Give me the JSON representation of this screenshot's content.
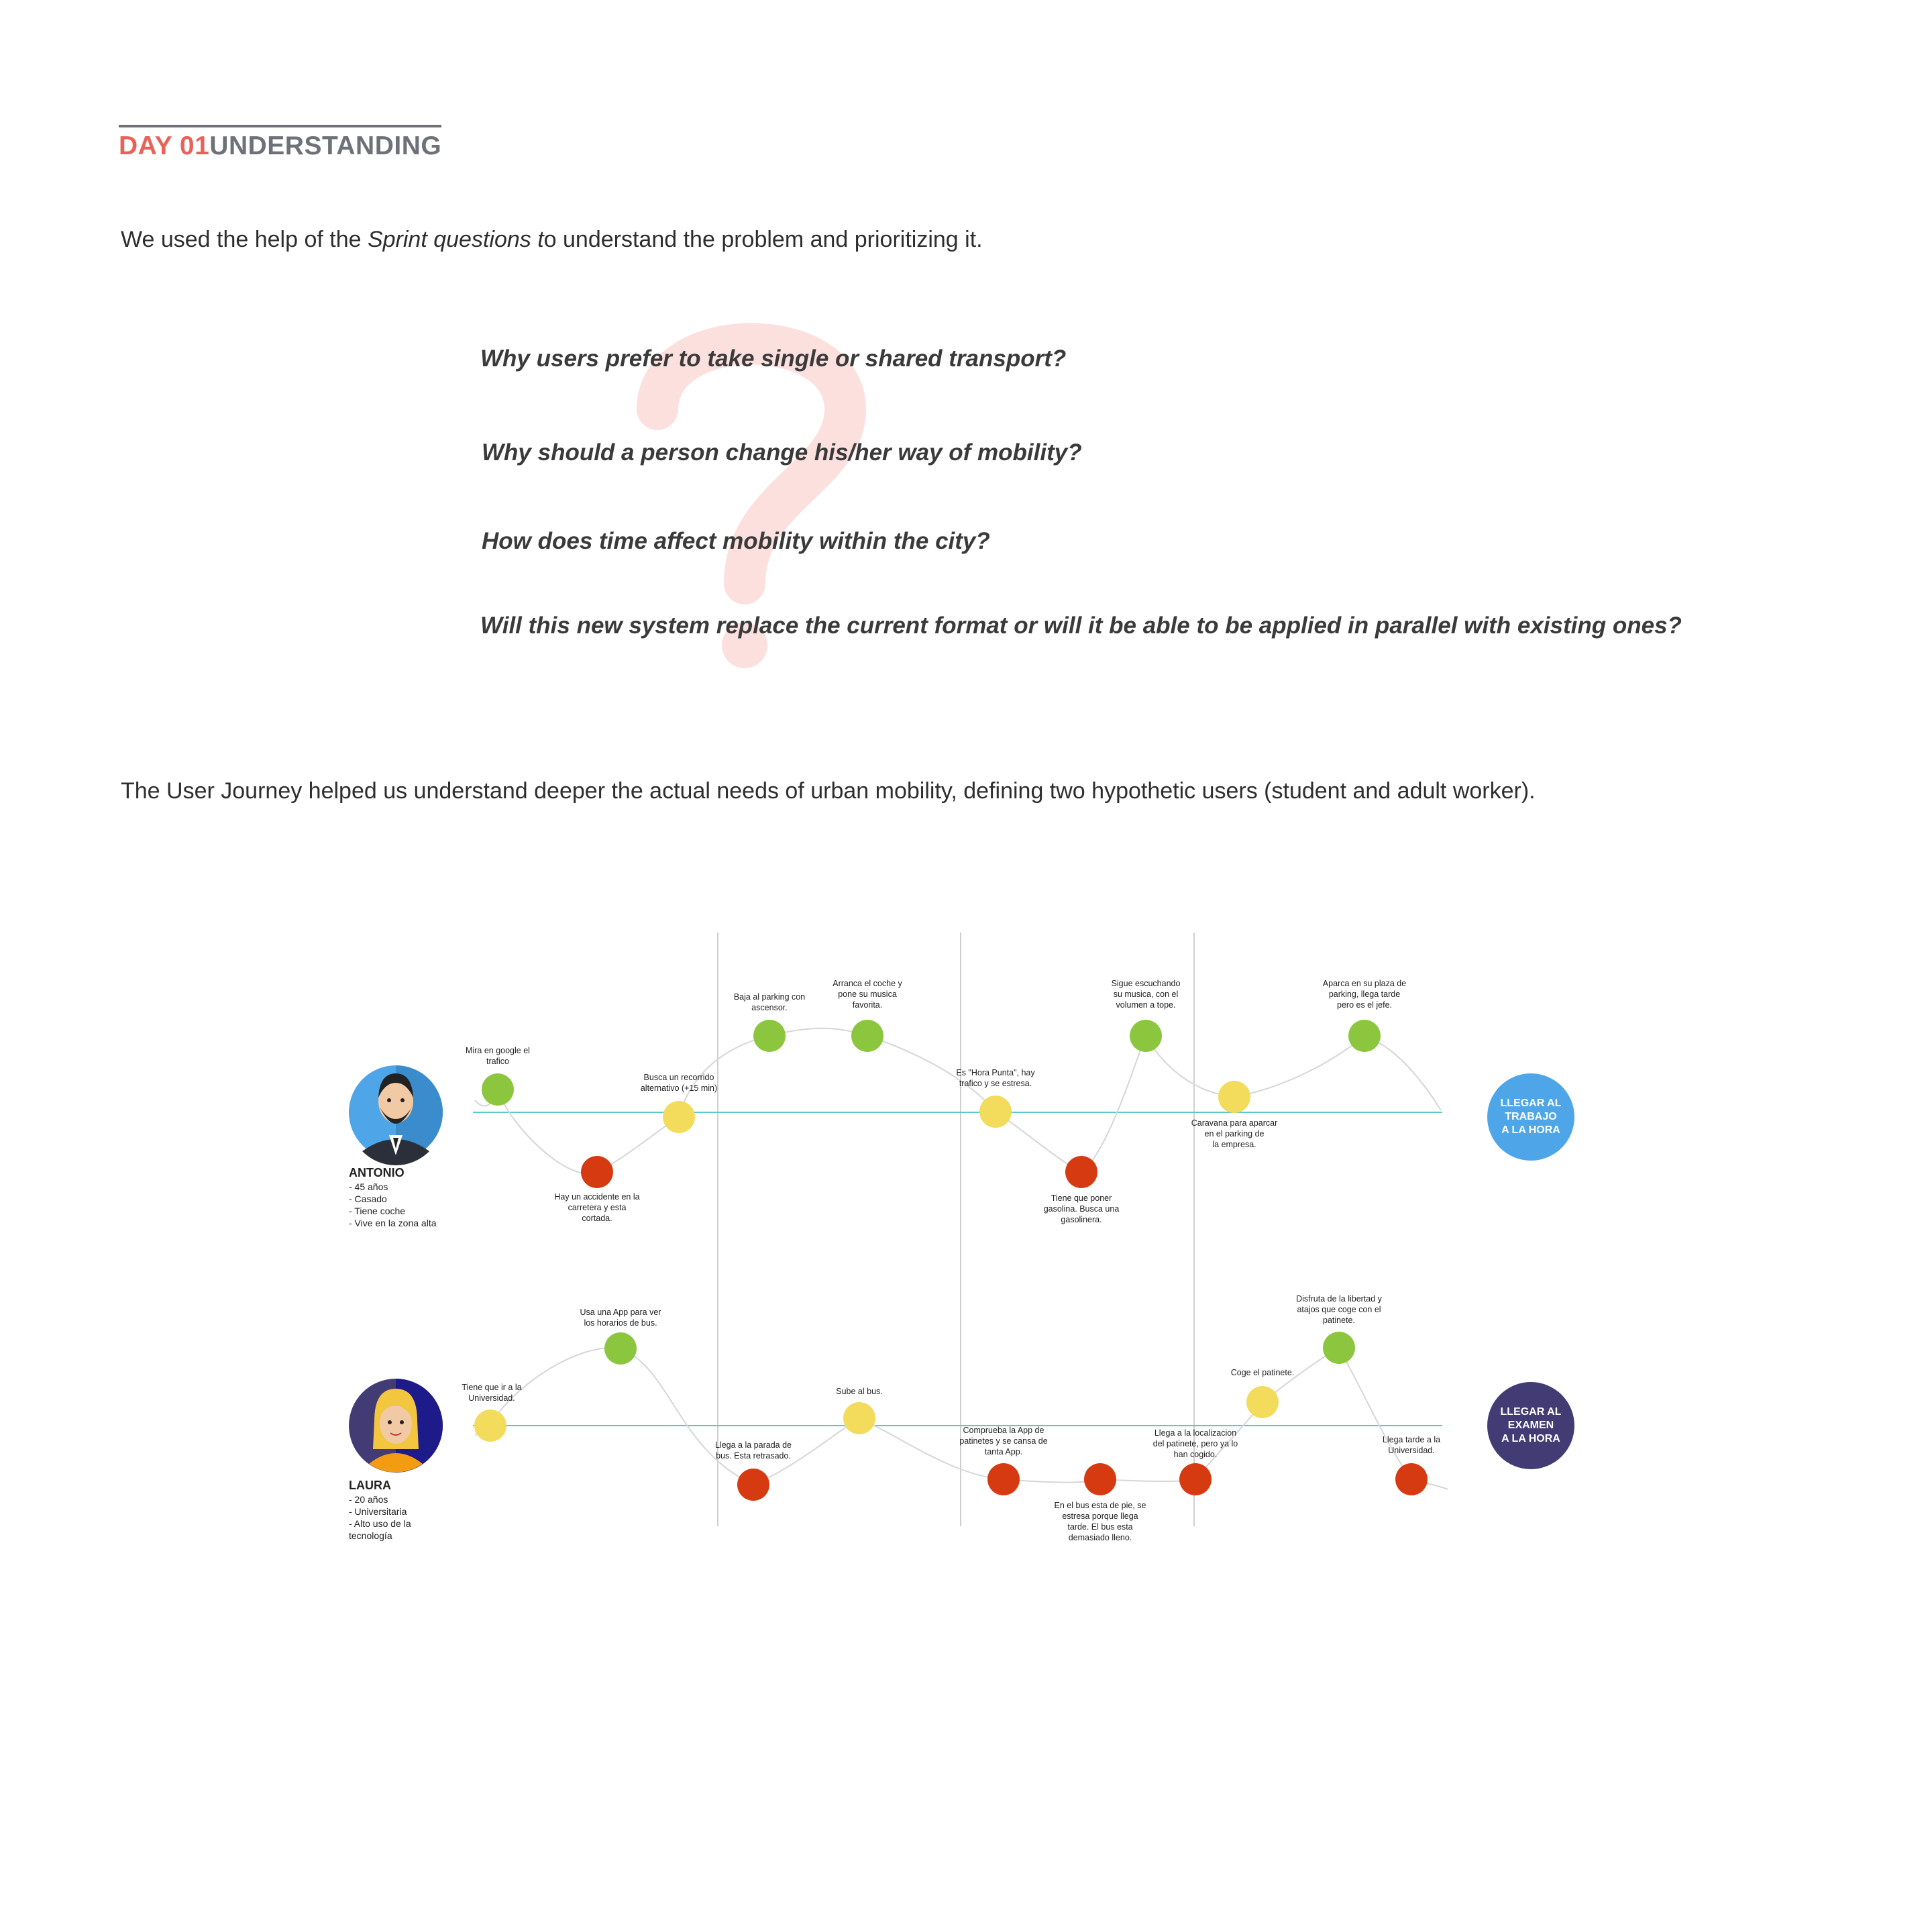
{
  "heading": {
    "day": "DAY 01",
    "title": "UNDERSTANDING"
  },
  "intro": {
    "before": "We used the help of the ",
    "emph": "Sprint questions t",
    "after": "o understand the problem and prioritizing it."
  },
  "questions": [
    "Why users prefer to take single or shared transport?",
    "Why should a person change his/her way of mobility?",
    "How does time affect mobility within the city?",
    "Will this new system replace the current format or will it be able to be applied in parallel with existing ones?"
  ],
  "journey_intro": "The User Journey helped us understand deeper the actual needs of urban mobility, defining two hypothetic users (student and adult worker).",
  "colors": {
    "accent": "#e8625a",
    "heading_grey": "#6e7178",
    "positive": "#8cc63f",
    "neutral": "#f3dc5b",
    "negative": "#d63a10",
    "baseline": "#5ec8c8",
    "goal_antonio": "#4ea6e8",
    "goal_laura": "#433b73"
  },
  "journey": {
    "personas": [
      {
        "name": "ANTONIO",
        "details": [
          "- 45 años",
          "- Casado",
          "- Tiene coche",
          "- Vive en la zona alta"
        ],
        "goal": [
          "LLEGAR AL",
          "TRABAJO",
          "A LA HORA"
        ],
        "steps": [
          {
            "mood": "positive",
            "lines": [
              "Mira en google el",
              "trafico"
            ]
          },
          {
            "mood": "negative",
            "lines": [
              "Hay un accidente en la",
              "carretera y esta",
              "cortada."
            ]
          },
          {
            "mood": "neutral",
            "lines": [
              "Busca un recorrido",
              "alternativo (+15 min)"
            ]
          },
          {
            "mood": "positive",
            "lines": [
              "Baja al parking con",
              "ascensor."
            ]
          },
          {
            "mood": "positive",
            "lines": [
              "Arranca el coche y",
              "pone su musica",
              "favorita."
            ]
          },
          {
            "mood": "neutral",
            "lines": [
              "Es \"Hora Punta\", hay",
              "trafico y se estresa."
            ]
          },
          {
            "mood": "negative",
            "lines": [
              "Tiene que poner",
              "gasolina. Busca una",
              "gasolinera."
            ]
          },
          {
            "mood": "positive",
            "lines": [
              "Sigue escuchando",
              "su musica, con el",
              "volumen a tope."
            ]
          },
          {
            "mood": "neutral",
            "lines": [
              "Caravana para aparcar",
              "en el parking de",
              "la empresa."
            ]
          },
          {
            "mood": "positive",
            "lines": [
              "Aparca en su plaza de",
              "parking, llega tarde",
              "pero es el jefe."
            ]
          }
        ]
      },
      {
        "name": "LAURA",
        "details": [
          "- 20 años",
          "- Universitaria",
          "- Alto uso de la",
          "tecnología"
        ],
        "goal": [
          "LLEGAR AL",
          "EXAMEN",
          "A LA HORA"
        ],
        "steps": [
          {
            "mood": "neutral",
            "lines": [
              "Tiene que ir a la",
              "Universidad."
            ]
          },
          {
            "mood": "positive",
            "lines": [
              "Usa una App para ver",
              "los horarios de bus."
            ]
          },
          {
            "mood": "negative",
            "lines": [
              "Llega a la parada de",
              "bus. Esta retrasado."
            ]
          },
          {
            "mood": "neutral",
            "lines": [
              "Sube al bus."
            ]
          },
          {
            "mood": "negative",
            "lines": [
              "Comprueba la App de",
              "patinetes y se cansa de",
              "tanta App."
            ]
          },
          {
            "mood": "negative",
            "lines": [
              "En el bus esta de pie, se",
              "estresa porque llega",
              "tarde. El bus esta",
              "demasiado lleno."
            ]
          },
          {
            "mood": "negative",
            "lines": [
              "Llega a la localizacion",
              "del patinete, pero ya lo",
              "han cogido."
            ]
          },
          {
            "mood": "neutral",
            "lines": [
              "Coge el patinete."
            ]
          },
          {
            "mood": "positive",
            "lines": [
              "Disfruta de la libertad y",
              "atajos que coge con el",
              "patinete."
            ]
          },
          {
            "mood": "negative",
            "lines": [
              "Llega tarde a la",
              "Universidad."
            ]
          }
        ]
      }
    ]
  }
}
